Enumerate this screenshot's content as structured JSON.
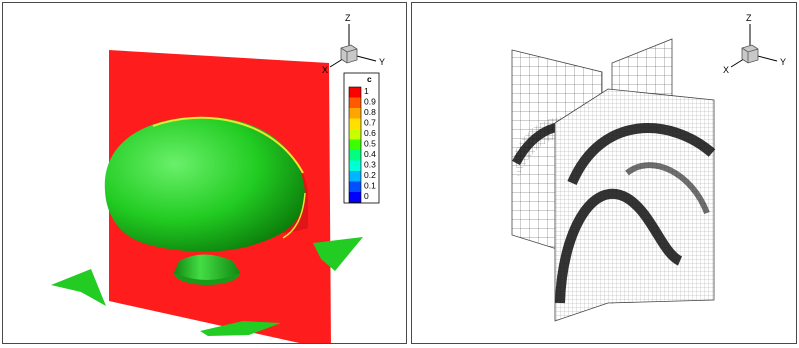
{
  "left_view": {
    "axis_triad": {
      "x": "X",
      "y": "Y",
      "z": "Z"
    },
    "colorbar": {
      "variable": "c",
      "levels": [
        "1",
        "0.9",
        "0.8",
        "0.7",
        "0.6",
        "0.5",
        "0.4",
        "0.3",
        "0.2",
        "0.1",
        "0"
      ],
      "colors": [
        "#ff0000",
        "#ff5a00",
        "#ffa500",
        "#ffe000",
        "#c8ff00",
        "#3cff00",
        "#00ff80",
        "#00ffd8",
        "#00b4ff",
        "#0050ff",
        "#0000ff"
      ]
    },
    "colors": {
      "slice": "#ff1c1c",
      "isosurface": "#22dd22"
    }
  },
  "right_view": {
    "axis_triad": {
      "x": "X",
      "y": "Y",
      "z": "Z"
    },
    "colors": {
      "mesh_line": "#333333",
      "refined_band": "#111111"
    }
  }
}
